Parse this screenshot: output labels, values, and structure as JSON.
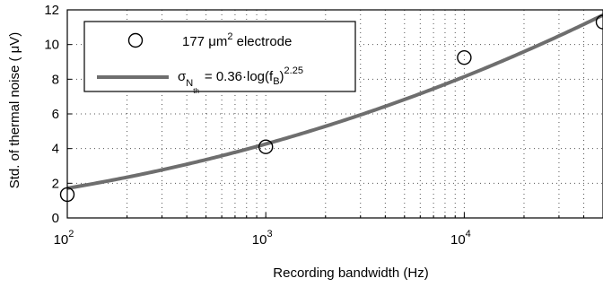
{
  "chart_data": {
    "type": "scatter",
    "xlabel": "Recording bandwidth (Hz)",
    "ylabel": "Std. of thermal noise ( μV)",
    "xscale": "log",
    "xlim": [
      100,
      50000
    ],
    "ylim": [
      0,
      12
    ],
    "grid": true,
    "legend_position": "top-left",
    "x_ticks": [
      {
        "base": "10",
        "exp": "2",
        "value": 100
      },
      {
        "base": "10",
        "exp": "3",
        "value": 1000
      },
      {
        "base": "10",
        "exp": "4",
        "value": 10000
      }
    ],
    "y_ticks": [
      "0",
      "2",
      "4",
      "6",
      "8",
      "10",
      "12"
    ],
    "series": [
      {
        "name": "177 μm² electrode",
        "kind": "scatter",
        "marker": "open-circle",
        "color": "#000000",
        "x": [
          100,
          1000,
          10000,
          50000
        ],
        "y": [
          1.35,
          4.1,
          9.25,
          11.3
        ]
      },
      {
        "name": "σN_th = 0.36·log(f_B)^2.25",
        "kind": "line",
        "color": "#6e6e6e",
        "formula": {
          "coef": 0.36,
          "exp": 2.25
        }
      }
    ],
    "legend": {
      "marker_label_pre": "177 ",
      "marker_label_mu": "μm",
      "marker_label_sup": "2",
      "marker_label_post": " electrode",
      "line_sigma": "σ",
      "line_sub1": "N",
      "line_sub2": "th",
      "line_eq": "= 0.36·log(f",
      "line_sub_b": "B",
      "line_close": ")",
      "line_sup": "2.25"
    }
  }
}
